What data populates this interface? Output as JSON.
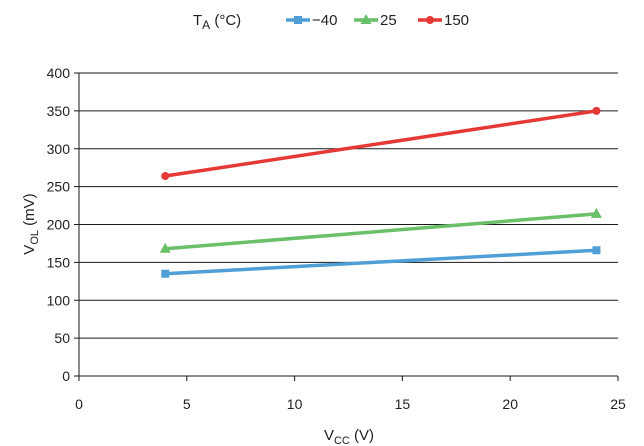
{
  "chart_data": {
    "type": "line",
    "legend": {
      "title_main": "T",
      "title_sub": "A",
      "title_unit": " (°C)",
      "placement": "top"
    },
    "xlabel": {
      "main": "V",
      "sub": "CC",
      "unit": " (V)"
    },
    "ylabel": {
      "main": "V",
      "sub": "OL",
      "unit": " (mV)"
    },
    "xlim": [
      0,
      25
    ],
    "ylim": [
      0,
      400
    ],
    "x_ticks": [
      0,
      5,
      10,
      15,
      20,
      25
    ],
    "y_ticks": [
      0,
      50,
      100,
      150,
      200,
      250,
      300,
      350,
      400
    ],
    "grid": "horizontal",
    "series": [
      {
        "name": "−40",
        "color": "#4f9fd6",
        "marker": "square",
        "x": [
          4,
          24
        ],
        "y": [
          135,
          166
        ]
      },
      {
        "name": "25",
        "color": "#6abf69",
        "marker": "triangle",
        "x": [
          4,
          24
        ],
        "y": [
          168,
          214
        ]
      },
      {
        "name": "150",
        "color": "#e53935",
        "marker": "circle",
        "x": [
          4,
          24
        ],
        "y": [
          264,
          350
        ]
      }
    ]
  }
}
